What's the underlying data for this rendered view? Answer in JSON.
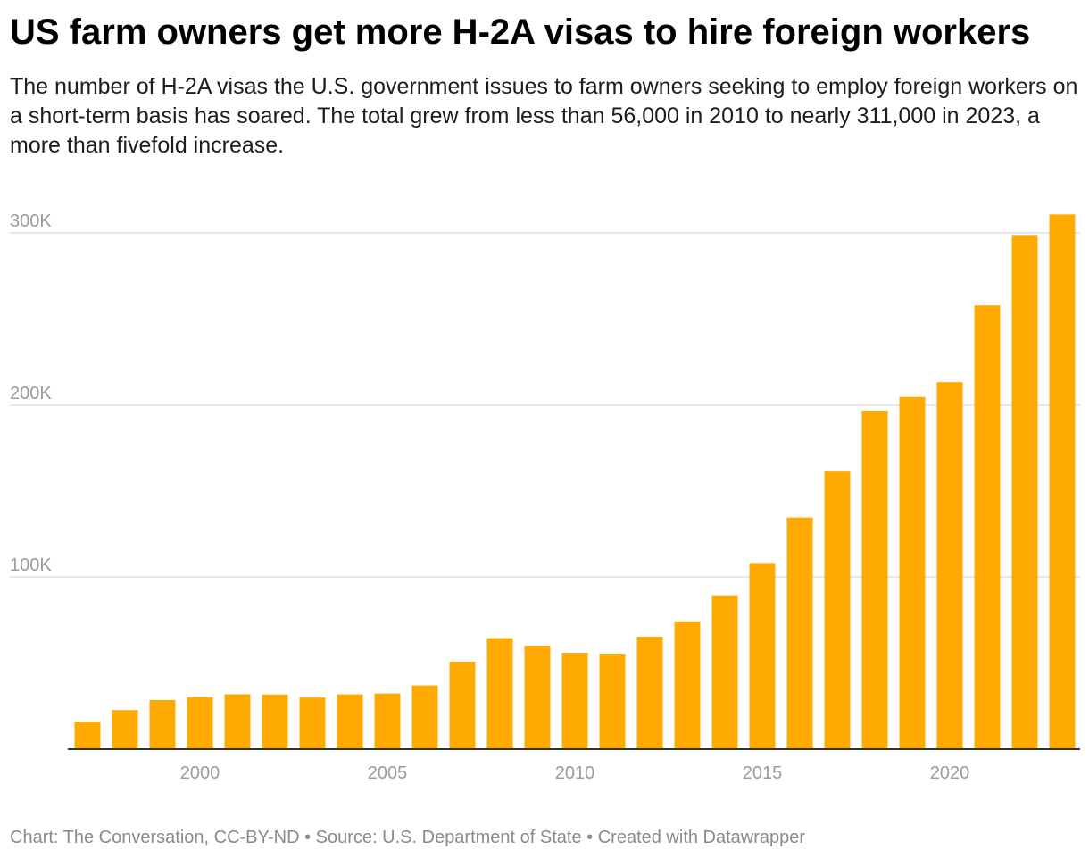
{
  "title": "US farm owners get more H-2A visas to hire foreign workers",
  "subtitle": "The number of H-2A visas the U.S. government issues to farm owners seeking to employ foreign workers on a short-term basis has soared. The total grew from less than 56,000 in 2010 to nearly 311,000 in 2023, a more than fivefold increase.",
  "footer": "Chart: The Conversation, CC-BY-ND • Source: U.S. Department of State • Created with Datawrapper",
  "colors": {
    "bar": "#FFAA00",
    "grid": "#e0e0e0",
    "axis": "#333333",
    "tick_text": "#9b9b9b"
  },
  "chart_data": {
    "type": "bar",
    "title": "US farm owners get more H-2A visas to hire foreign workers",
    "xlabel": "",
    "ylabel": "",
    "x": [
      1997,
      1998,
      1999,
      2000,
      2001,
      2002,
      2003,
      2004,
      2005,
      2006,
      2007,
      2008,
      2009,
      2010,
      2011,
      2012,
      2013,
      2014,
      2015,
      2016,
      2017,
      2018,
      2019,
      2020,
      2021,
      2022,
      2023
    ],
    "values": [
      16000,
      22700,
      28500,
      30200,
      31900,
      31700,
      30000,
      31800,
      32300,
      37000,
      50800,
      64500,
      60100,
      55900,
      55400,
      65300,
      74200,
      89300,
      108100,
      134400,
      161600,
      196400,
      204800,
      213400,
      257900,
      298300,
      310700
    ],
    "ylim": [
      0,
      300000
    ],
    "y_ticks": [
      {
        "value": 100000,
        "label": "100K"
      },
      {
        "value": 200000,
        "label": "200K"
      },
      {
        "value": 300000,
        "label": "300K"
      }
    ],
    "x_ticks": [
      {
        "value": 2000,
        "label": "2000"
      },
      {
        "value": 2005,
        "label": "2005"
      },
      {
        "value": 2010,
        "label": "2010"
      },
      {
        "value": 2015,
        "label": "2015"
      },
      {
        "value": 2020,
        "label": "2020"
      }
    ],
    "grid": true
  }
}
